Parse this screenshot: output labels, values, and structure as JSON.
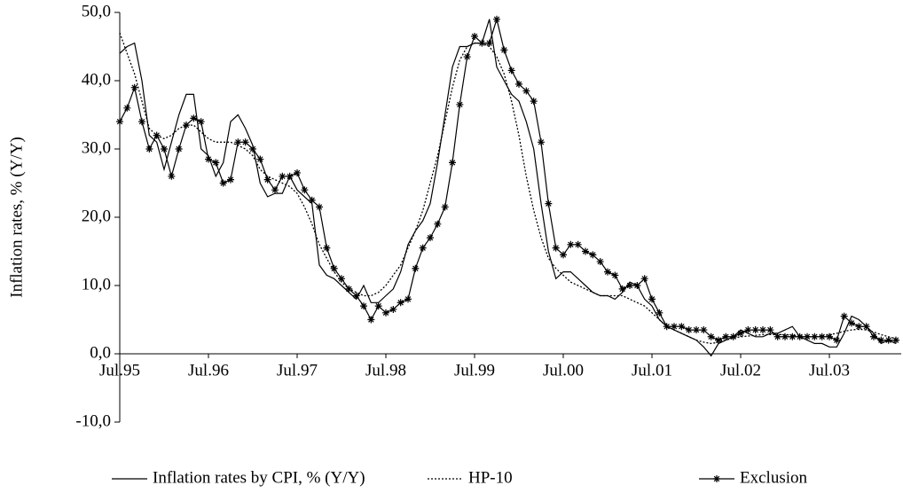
{
  "chart_data": {
    "type": "line",
    "y_label": "Inflation rates, % (Y/Y)",
    "categories": [
      "Jul.95",
      null,
      null,
      null,
      null,
      null,
      null,
      null,
      null,
      null,
      null,
      null,
      "Jul.96",
      null,
      null,
      null,
      null,
      null,
      null,
      null,
      null,
      null,
      null,
      null,
      "Jul.97",
      null,
      null,
      null,
      null,
      null,
      null,
      null,
      null,
      null,
      null,
      null,
      "Jul.98",
      null,
      null,
      null,
      null,
      null,
      null,
      null,
      null,
      null,
      null,
      null,
      "Jul.99",
      null,
      null,
      null,
      null,
      null,
      null,
      null,
      null,
      null,
      null,
      null,
      "Jul.00",
      null,
      null,
      null,
      null,
      null,
      null,
      null,
      null,
      null,
      null,
      null,
      "Jul.01",
      null,
      null,
      null,
      null,
      null,
      null,
      null,
      null,
      null,
      null,
      null,
      "Jul.02",
      null,
      null,
      null,
      null,
      null,
      null,
      null,
      null,
      null,
      null,
      null,
      "Jul.03",
      null,
      null,
      null,
      null,
      null,
      null,
      null,
      null,
      null
    ],
    "series": [
      {
        "name": "Inflation rates by CPI, % (Y/Y)",
        "color": "#000000",
        "style": "solid",
        "values": [
          44,
          45,
          45.5,
          40,
          32,
          31,
          27,
          31,
          35,
          38,
          38,
          30,
          29,
          26,
          28,
          34,
          35,
          33,
          30.5,
          25,
          23,
          23.5,
          23.5,
          26,
          24,
          23,
          22,
          13,
          11.5,
          11,
          10,
          9,
          8,
          10,
          7.5,
          7.5,
          8.5,
          9.5,
          12,
          16,
          18,
          19.5,
          22,
          28,
          35,
          42,
          45,
          45,
          45.5,
          45.5,
          49,
          42,
          40,
          38,
          37,
          34,
          30,
          22,
          15,
          11,
          12,
          12,
          11,
          10,
          9,
          8.5,
          8.5,
          8,
          9,
          10.5,
          10,
          8,
          7,
          5,
          4,
          3.5,
          3,
          2.5,
          2,
          1,
          -0.3,
          1.5,
          2,
          2.5,
          3.5,
          3,
          2.5,
          2.5,
          3,
          3,
          3.5,
          4,
          2.5,
          2,
          1.5,
          1.5,
          1,
          1,
          3,
          5.5,
          5,
          4,
          3,
          1.5,
          2,
          1.5
        ]
      },
      {
        "name": "HP-10",
        "color": "#000000",
        "style": "dotted",
        "values": [
          47,
          44,
          41,
          37,
          33,
          32,
          31.5,
          32,
          33,
          33.5,
          33.5,
          32.5,
          31.5,
          31,
          31,
          31,
          30.5,
          30,
          29,
          27,
          26,
          25.5,
          25,
          24.5,
          23.5,
          21.5,
          19,
          16,
          14,
          12,
          10.5,
          9.5,
          9,
          8.5,
          8.5,
          9,
          10,
          11.5,
          13,
          15.5,
          18,
          21,
          25,
          29,
          34,
          39,
          43,
          45,
          45.5,
          45.5,
          45,
          43.5,
          41,
          37,
          32,
          26,
          21,
          17,
          14,
          12.5,
          11.5,
          10.5,
          10,
          9.5,
          9,
          8.5,
          8.5,
          8.5,
          8.5,
          8,
          7.5,
          7,
          6,
          5,
          4,
          3.5,
          3,
          2.5,
          2,
          1.7,
          1.5,
          1.7,
          2,
          2.3,
          2.5,
          2.6,
          2.7,
          2.8,
          2.8,
          2.8,
          2.8,
          2.7,
          2.6,
          2.5,
          2.5,
          2.6,
          2.8,
          3,
          3.3,
          3.5,
          3.6,
          3.5,
          3.2,
          2.8,
          2.5,
          2.2
        ]
      },
      {
        "name": "Exclusion",
        "color": "#000000",
        "style": "star",
        "values": [
          34,
          36,
          39,
          34,
          30,
          32,
          30,
          26,
          30,
          33.5,
          34.5,
          34,
          28.5,
          28,
          25,
          25.5,
          31,
          31,
          30,
          28.5,
          25.5,
          24,
          26,
          26,
          26.5,
          24,
          22.5,
          21.5,
          15.5,
          12.5,
          11,
          9.5,
          8.5,
          7,
          5,
          7,
          6,
          6.5,
          7.5,
          8,
          12.5,
          15.5,
          17,
          19,
          21.5,
          28,
          36.5,
          43.5,
          46.5,
          45.5,
          45.5,
          49,
          44.5,
          41.5,
          39.5,
          38.5,
          37,
          31,
          22,
          15.5,
          14.5,
          16,
          16,
          15,
          14.5,
          13.5,
          12,
          11.5,
          9.5,
          10,
          10,
          11,
          8,
          6,
          4,
          4,
          4,
          3.5,
          3.5,
          3.5,
          2.5,
          2,
          2.5,
          2.5,
          3,
          3.5,
          3.5,
          3.5,
          3.5,
          2.5,
          2.5,
          2.5,
          2.5,
          2.5,
          2.5,
          2.5,
          2.5,
          2,
          5.5,
          4.5,
          4,
          4,
          2.5,
          2,
          2,
          2
        ]
      }
    ],
    "ylim": [
      -10,
      50
    ],
    "yticks": [
      {
        "value": -10,
        "label": "-10,0"
      },
      {
        "value": 0,
        "label": "0,0"
      },
      {
        "value": 10,
        "label": "10,0"
      },
      {
        "value": 20,
        "label": "20,0"
      },
      {
        "value": 30,
        "label": "30,0"
      },
      {
        "value": 40,
        "label": "40,0"
      },
      {
        "value": 50,
        "label": "50,0"
      }
    ],
    "grid": false,
    "legend": "bottom"
  }
}
